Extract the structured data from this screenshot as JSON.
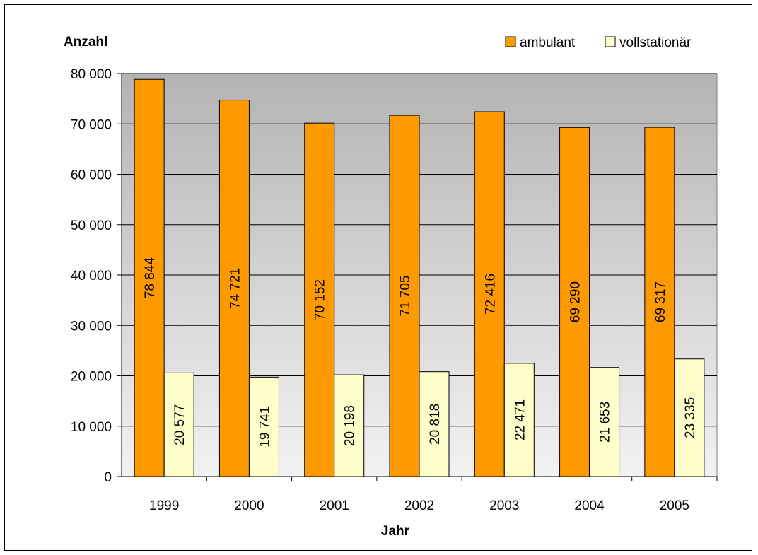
{
  "chart_data": {
    "type": "bar",
    "ylabel": "Anzahl",
    "xlabel": "Jahr",
    "categories": [
      "1999",
      "2000",
      "2001",
      "2002",
      "2003",
      "2004",
      "2005"
    ],
    "series": [
      {
        "name": "ambulant",
        "color": "#FF9900",
        "values": [
          78844,
          74721,
          70152,
          71705,
          72416,
          69290,
          69317
        ],
        "labels": [
          "78 844",
          "74 721",
          "70 152",
          "71 705",
          "72 416",
          "69 290",
          "69 317"
        ]
      },
      {
        "name": "vollstationär",
        "color": "#FFFFCC",
        "values": [
          20577,
          19741,
          20198,
          20818,
          22471,
          21653,
          23335
        ],
        "labels": [
          "20 577",
          "19 741",
          "20 198",
          "20 818",
          "22 471",
          "21 653",
          "23 335"
        ]
      }
    ],
    "ylim": [
      0,
      80000
    ],
    "yticks": [
      0,
      10000,
      20000,
      30000,
      40000,
      50000,
      60000,
      70000,
      80000
    ],
    "ytick_labels": [
      "0",
      "10 000",
      "20 000",
      "30 000",
      "40 000",
      "50 000",
      "60 000",
      "70 000",
      "80 000"
    ],
    "grid": true,
    "legend_position": "top-right",
    "plot_background": "gradient grey to light grey"
  }
}
